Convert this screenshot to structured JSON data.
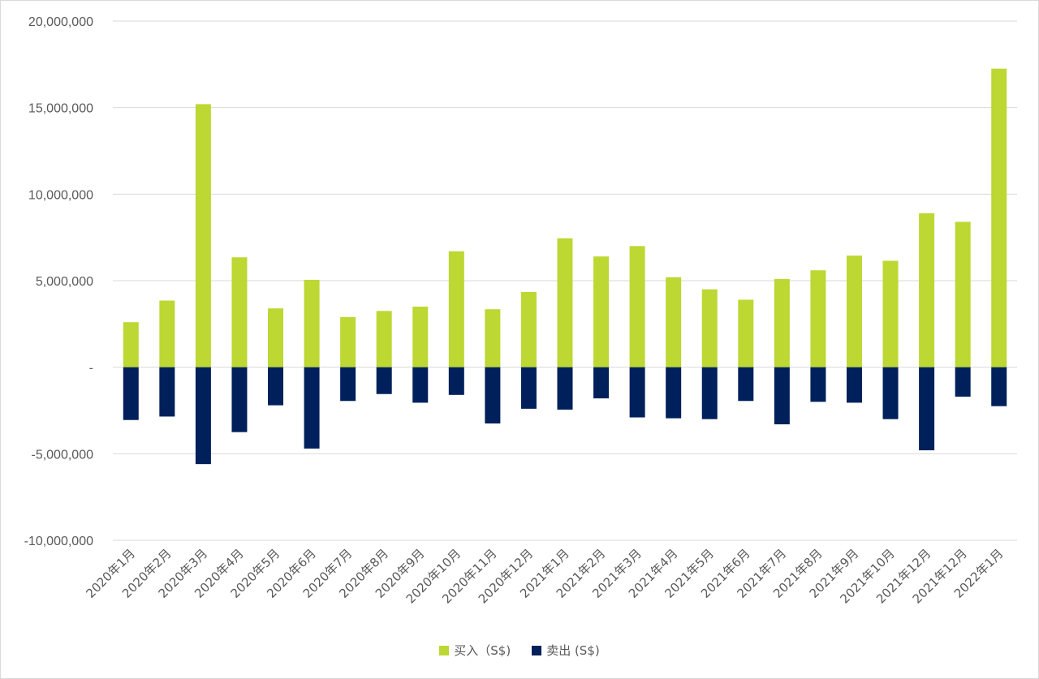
{
  "chart_data": {
    "type": "bar",
    "title": "",
    "xlabel": "",
    "ylabel": "",
    "ylim": [
      -10000000,
      20000000
    ],
    "yticks": [
      20000000,
      15000000,
      10000000,
      5000000,
      0,
      -5000000,
      -10000000
    ],
    "ytick_labels": [
      "20,000,000",
      "15,000,000",
      "10,000,000",
      "5,000,000",
      "-",
      "-5,000,000",
      "-10,000,000"
    ],
    "grid": true,
    "legend_position": "bottom",
    "categories": [
      "2020年1月",
      "2020年2月",
      "2020年3月",
      "2020年4月",
      "2020年5月",
      "2020年6月",
      "2020年7月",
      "2020年8月",
      "2020年9月",
      "2020年10月",
      "2020年11月",
      "2020年12月",
      "2021年1月",
      "2021年2月",
      "2021年3月",
      "2021年4月",
      "2021年5月",
      "2021年6月",
      "2021年7月",
      "2021年8月",
      "2021年9月",
      "2021年10月",
      "2021年12月",
      "2021年12月",
      "2022年1月"
    ],
    "series": [
      {
        "name": "买入（S$)",
        "color": "#bdd733",
        "values": [
          2600000,
          3850000,
          15200000,
          6350000,
          3400000,
          5050000,
          2900000,
          3250000,
          3500000,
          6700000,
          3350000,
          4350000,
          7450000,
          6400000,
          7000000,
          5200000,
          4500000,
          3900000,
          5100000,
          5600000,
          6450000,
          6150000,
          8900000,
          8400000,
          17250000
        ]
      },
      {
        "name": "卖出 (S$)",
        "color": "#00205b",
        "values": [
          -3050000,
          -2850000,
          -5600000,
          -3750000,
          -2200000,
          -4700000,
          -1950000,
          -1550000,
          -2050000,
          -1600000,
          -3250000,
          -2400000,
          -2450000,
          -1800000,
          -2900000,
          -2950000,
          -3000000,
          -1950000,
          -3300000,
          -2000000,
          -2050000,
          -3000000,
          -4800000,
          -1700000,
          -2250000
        ]
      }
    ]
  }
}
